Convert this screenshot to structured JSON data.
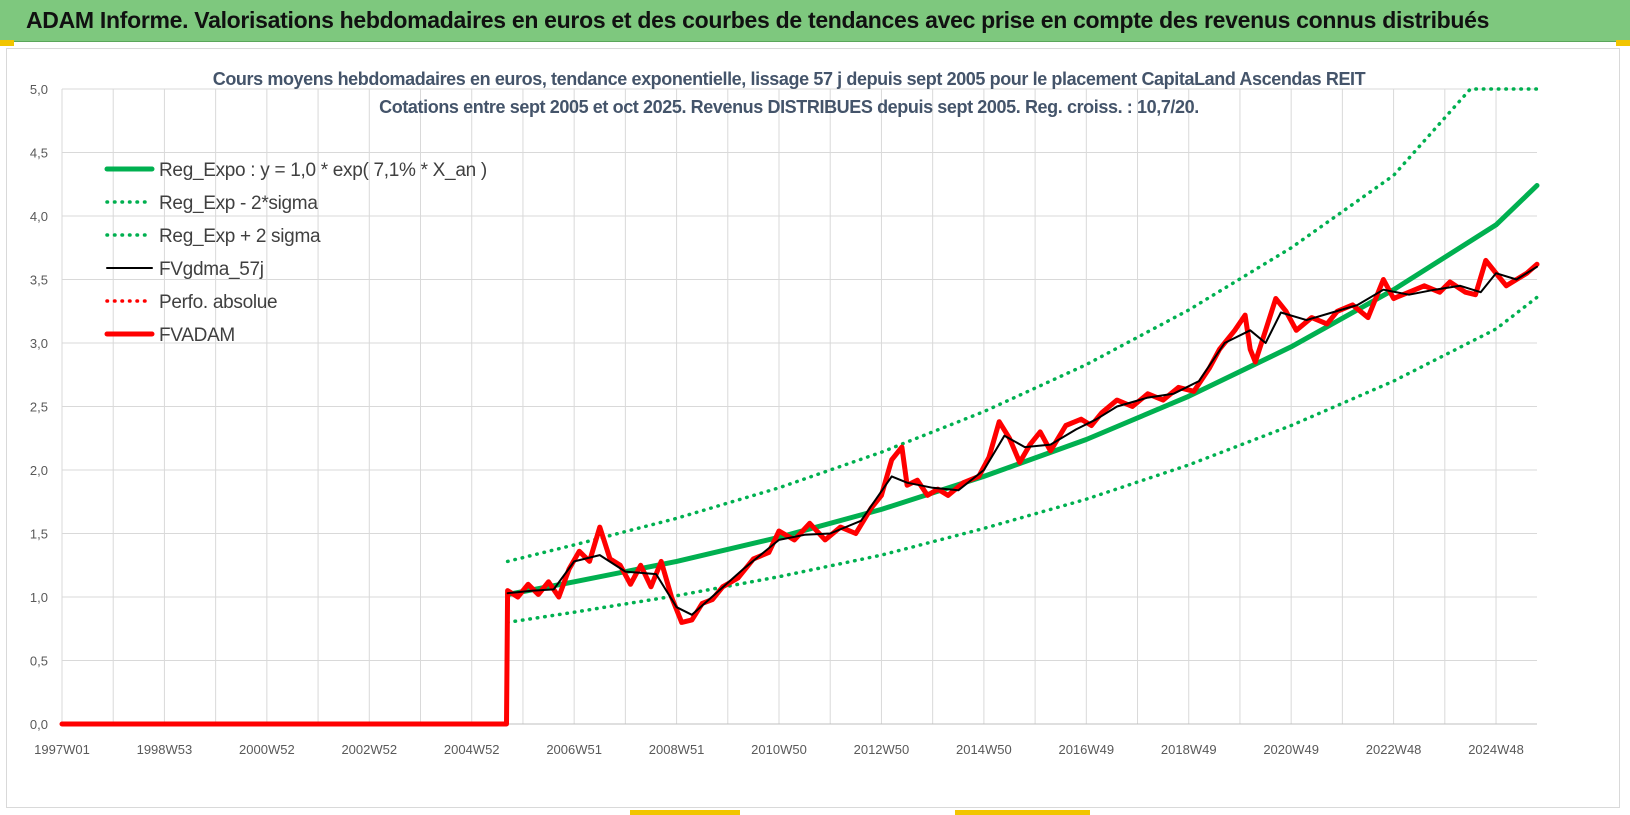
{
  "header": {
    "title": "ADAM Informe. Valorisations hebdomadaires en euros et des courbes de tendances avec prise en compte des revenus connus distribués"
  },
  "colors": {
    "banner": "#7ec87e",
    "reg_expo": "#00b050",
    "reg_sigma": "#00b050",
    "fvgdma": "#000000",
    "perfo": "#ff0000",
    "fvadam": "#ff0000",
    "grid": "#d9d9d9"
  },
  "chart_data": {
    "type": "line",
    "title_lines": [
      "Cours moyens hebdomadaires en euros, tendance exponentielle, lissage 57 j depuis sept 2005 pour le placement CapitaLand Ascendas REIT",
      "Cotations entre sept 2005 et oct 2025. Revenus DISTRIBUES depuis sept 2005. Reg. croiss. : 10,7/20."
    ],
    "xlabel": "",
    "ylabel": "",
    "ylim": [
      0,
      5
    ],
    "yticks": [
      "0,0",
      "0,5",
      "1,0",
      "1,5",
      "2,0",
      "2,5",
      "3,0",
      "3,5",
      "4,0",
      "4,5",
      "5,0"
    ],
    "x_range_years": [
      1997.0,
      2025.8
    ],
    "xticks": [
      {
        "label": "1997W01",
        "year": 1997.0
      },
      {
        "label": "1998W53",
        "year": 1999.0
      },
      {
        "label": "2000W52",
        "year": 2001.0
      },
      {
        "label": "2002W52",
        "year": 2003.0
      },
      {
        "label": "2004W52",
        "year": 2005.0
      },
      {
        "label": "2006W51",
        "year": 2007.0
      },
      {
        "label": "2008W51",
        "year": 2009.0
      },
      {
        "label": "2010W50",
        "year": 2011.0
      },
      {
        "label": "2012W50",
        "year": 2013.0
      },
      {
        "label": "2014W50",
        "year": 2015.0
      },
      {
        "label": "2016W49",
        "year": 2017.0
      },
      {
        "label": "2018W49",
        "year": 2019.0
      },
      {
        "label": "2020W49",
        "year": 2021.0
      },
      {
        "label": "2022W48",
        "year": 2023.0
      },
      {
        "label": "2024W48",
        "year": 2025.0
      }
    ],
    "grid": true,
    "legend_position": "top-left",
    "series": [
      {
        "name": "Reg_Expo : y = 1,0 * exp( 7,1% *  X_an )",
        "style": "solid-thick",
        "color": "#00b050",
        "points": [
          [
            2005.7,
            1.02
          ],
          [
            2007.0,
            1.12
          ],
          [
            2009.0,
            1.28
          ],
          [
            2011.0,
            1.47
          ],
          [
            2013.0,
            1.69
          ],
          [
            2015.0,
            1.95
          ],
          [
            2017.0,
            2.24
          ],
          [
            2019.0,
            2.58
          ],
          [
            2021.0,
            2.97
          ],
          [
            2023.0,
            3.42
          ],
          [
            2025.0,
            3.93
          ],
          [
            2025.8,
            4.24
          ]
        ]
      },
      {
        "name": "Reg_Exp - 2*sigma",
        "style": "dotted",
        "color": "#00b050",
        "points": [
          [
            2005.7,
            0.8
          ],
          [
            2007.0,
            0.88
          ],
          [
            2009.0,
            1.01
          ],
          [
            2011.0,
            1.16
          ],
          [
            2013.0,
            1.33
          ],
          [
            2015.0,
            1.54
          ],
          [
            2017.0,
            1.77
          ],
          [
            2019.0,
            2.04
          ],
          [
            2021.0,
            2.35
          ],
          [
            2023.0,
            2.7
          ],
          [
            2025.0,
            3.11
          ],
          [
            2025.8,
            3.36
          ]
        ]
      },
      {
        "name": "Reg_Exp + 2 sigma",
        "style": "dotted",
        "color": "#00b050",
        "points": [
          [
            2005.7,
            1.28
          ],
          [
            2007.0,
            1.41
          ],
          [
            2009.0,
            1.62
          ],
          [
            2011.0,
            1.86
          ],
          [
            2013.0,
            2.14
          ],
          [
            2015.0,
            2.46
          ],
          [
            2017.0,
            2.83
          ],
          [
            2019.0,
            3.26
          ],
          [
            2021.0,
            3.75
          ],
          [
            2023.0,
            4.32
          ],
          [
            2024.5,
            5.0
          ],
          [
            2025.8,
            5.0
          ]
        ]
      },
      {
        "name": "FVgdma_57j",
        "style": "solid",
        "color": "#000000",
        "points": [
          [
            2005.7,
            1.03
          ],
          [
            2006.2,
            1.05
          ],
          [
            2006.6,
            1.06
          ],
          [
            2007.0,
            1.28
          ],
          [
            2007.5,
            1.33
          ],
          [
            2008.0,
            1.2
          ],
          [
            2008.6,
            1.18
          ],
          [
            2009.0,
            0.92
          ],
          [
            2009.3,
            0.86
          ],
          [
            2009.8,
            1.04
          ],
          [
            2010.3,
            1.22
          ],
          [
            2011.0,
            1.45
          ],
          [
            2011.5,
            1.49
          ],
          [
            2012.0,
            1.5
          ],
          [
            2012.6,
            1.6
          ],
          [
            2013.2,
            1.95
          ],
          [
            2013.5,
            1.9
          ],
          [
            2014.0,
            1.86
          ],
          [
            2014.5,
            1.84
          ],
          [
            2015.0,
            2.0
          ],
          [
            2015.4,
            2.27
          ],
          [
            2015.8,
            2.18
          ],
          [
            2016.3,
            2.2
          ],
          [
            2016.8,
            2.32
          ],
          [
            2017.2,
            2.4
          ],
          [
            2017.6,
            2.5
          ],
          [
            2018.2,
            2.57
          ],
          [
            2018.7,
            2.6
          ],
          [
            2019.2,
            2.7
          ],
          [
            2019.7,
            3.0
          ],
          [
            2020.2,
            3.1
          ],
          [
            2020.5,
            3.0
          ],
          [
            2020.8,
            3.24
          ],
          [
            2021.3,
            3.18
          ],
          [
            2021.8,
            3.24
          ],
          [
            2022.3,
            3.3
          ],
          [
            2022.8,
            3.42
          ],
          [
            2023.3,
            3.38
          ],
          [
            2023.8,
            3.42
          ],
          [
            2024.3,
            3.45
          ],
          [
            2024.7,
            3.4
          ],
          [
            2025.0,
            3.55
          ],
          [
            2025.4,
            3.5
          ],
          [
            2025.8,
            3.6
          ]
        ]
      },
      {
        "name": "Perfo. absolue",
        "style": "dotted",
        "color": "#ff0000",
        "points": []
      },
      {
        "name": "FVADAM",
        "style": "solid-thick",
        "color": "#ff0000",
        "points": [
          [
            1997.0,
            0.0
          ],
          [
            2005.68,
            0.0
          ],
          [
            2005.7,
            1.05
          ],
          [
            2005.9,
            1.0
          ],
          [
            2006.1,
            1.1
          ],
          [
            2006.3,
            1.02
          ],
          [
            2006.5,
            1.12
          ],
          [
            2006.7,
            1.0
          ],
          [
            2006.9,
            1.22
          ],
          [
            2007.1,
            1.36
          ],
          [
            2007.3,
            1.28
          ],
          [
            2007.5,
            1.55
          ],
          [
            2007.7,
            1.3
          ],
          [
            2007.9,
            1.25
          ],
          [
            2008.1,
            1.1
          ],
          [
            2008.3,
            1.25
          ],
          [
            2008.5,
            1.08
          ],
          [
            2008.7,
            1.28
          ],
          [
            2008.9,
            1.0
          ],
          [
            2009.1,
            0.8
          ],
          [
            2009.3,
            0.82
          ],
          [
            2009.5,
            0.95
          ],
          [
            2009.7,
            0.98
          ],
          [
            2009.9,
            1.08
          ],
          [
            2010.2,
            1.15
          ],
          [
            2010.5,
            1.3
          ],
          [
            2010.8,
            1.35
          ],
          [
            2011.0,
            1.52
          ],
          [
            2011.3,
            1.45
          ],
          [
            2011.6,
            1.58
          ],
          [
            2011.9,
            1.45
          ],
          [
            2012.2,
            1.55
          ],
          [
            2012.5,
            1.5
          ],
          [
            2012.8,
            1.7
          ],
          [
            2013.0,
            1.8
          ],
          [
            2013.2,
            2.08
          ],
          [
            2013.4,
            2.18
          ],
          [
            2013.5,
            1.88
          ],
          [
            2013.7,
            1.92
          ],
          [
            2013.9,
            1.8
          ],
          [
            2014.1,
            1.85
          ],
          [
            2014.3,
            1.8
          ],
          [
            2014.6,
            1.9
          ],
          [
            2014.9,
            1.95
          ],
          [
            2015.1,
            2.1
          ],
          [
            2015.3,
            2.38
          ],
          [
            2015.5,
            2.25
          ],
          [
            2015.7,
            2.06
          ],
          [
            2015.9,
            2.2
          ],
          [
            2016.1,
            2.3
          ],
          [
            2016.3,
            2.15
          ],
          [
            2016.6,
            2.35
          ],
          [
            2016.9,
            2.4
          ],
          [
            2017.1,
            2.35
          ],
          [
            2017.3,
            2.45
          ],
          [
            2017.6,
            2.55
          ],
          [
            2017.9,
            2.5
          ],
          [
            2018.2,
            2.6
          ],
          [
            2018.5,
            2.55
          ],
          [
            2018.8,
            2.65
          ],
          [
            2019.1,
            2.62
          ],
          [
            2019.4,
            2.8
          ],
          [
            2019.6,
            2.95
          ],
          [
            2019.9,
            3.1
          ],
          [
            2020.1,
            3.22
          ],
          [
            2020.2,
            2.95
          ],
          [
            2020.3,
            2.85
          ],
          [
            2020.5,
            3.1
          ],
          [
            2020.7,
            3.35
          ],
          [
            2020.9,
            3.25
          ],
          [
            2021.1,
            3.1
          ],
          [
            2021.4,
            3.2
          ],
          [
            2021.7,
            3.15
          ],
          [
            2021.9,
            3.25
          ],
          [
            2022.2,
            3.3
          ],
          [
            2022.5,
            3.2
          ],
          [
            2022.8,
            3.5
          ],
          [
            2023.0,
            3.35
          ],
          [
            2023.3,
            3.4
          ],
          [
            2023.6,
            3.45
          ],
          [
            2023.9,
            3.4
          ],
          [
            2024.1,
            3.48
          ],
          [
            2024.4,
            3.4
          ],
          [
            2024.6,
            3.38
          ],
          [
            2024.8,
            3.65
          ],
          [
            2025.0,
            3.55
          ],
          [
            2025.2,
            3.45
          ],
          [
            2025.4,
            3.5
          ],
          [
            2025.6,
            3.55
          ],
          [
            2025.8,
            3.62
          ]
        ]
      }
    ]
  }
}
